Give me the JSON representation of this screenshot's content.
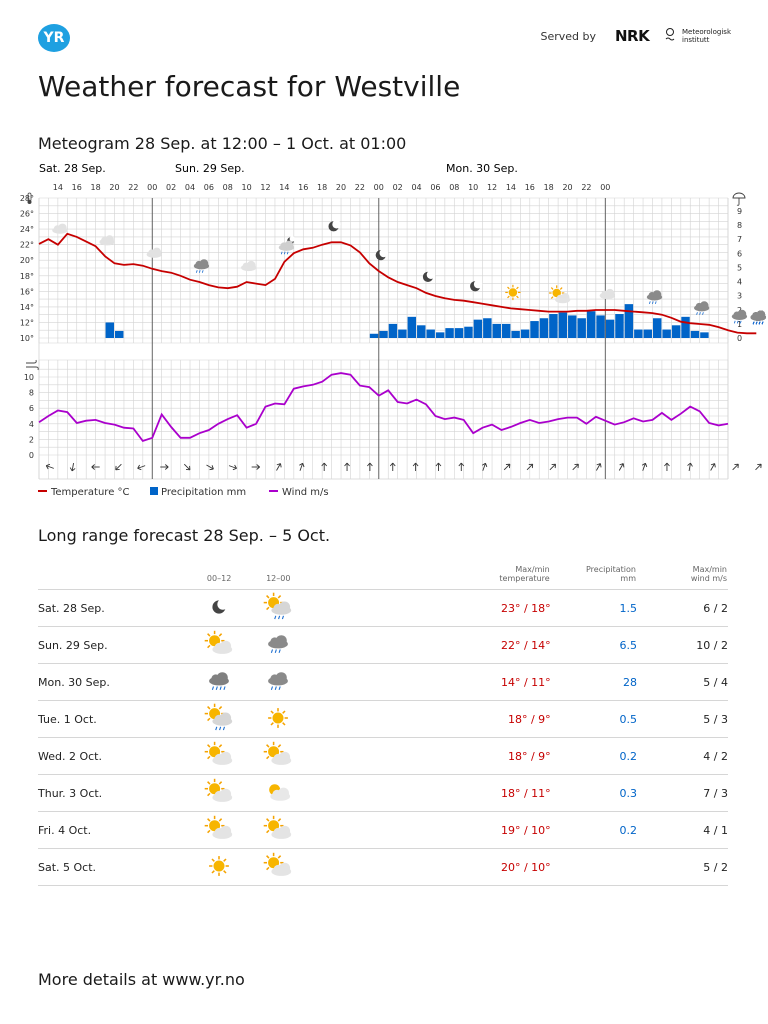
{
  "header": {
    "logo_text": "YR",
    "served_by": "Served by",
    "nrk": "NRK",
    "met_line1": "Meteorologisk",
    "met_line2": "institutt"
  },
  "title": "Weather forecast for Westville",
  "meteogram": {
    "title": "Meteogram 28 Sep. at 12:00 – 1 Oct. at 01:00",
    "days": [
      "Sat. 28 Sep.",
      "Sun. 29 Sep.",
      "Mon. 30 Sep."
    ],
    "hour_labels": [
      "14",
      "16",
      "18",
      "20",
      "22",
      "00",
      "02",
      "04",
      "06",
      "08",
      "10",
      "12",
      "14",
      "16",
      "18",
      "20",
      "22",
      "00",
      "02",
      "04",
      "06",
      "08",
      "10",
      "12",
      "14",
      "16",
      "18",
      "20",
      "22",
      "00"
    ],
    "temp_ticks": [
      "28°",
      "26°",
      "24°",
      "22°",
      "20°",
      "18°",
      "16°",
      "14°",
      "12°",
      "10°"
    ],
    "precip_ticks": [
      "9",
      "8",
      "7",
      "6",
      "5",
      "4",
      "3",
      "2",
      "1",
      "0"
    ],
    "wind_ticks": [
      "10",
      "8",
      "6",
      "4",
      "2",
      "0"
    ],
    "legend": [
      "Temperature °C",
      "Precipitation mm",
      "Wind m/s"
    ],
    "colors": {
      "temperature": "#c60000",
      "precipitation": "#0064c8",
      "wind": "#aa00cc",
      "grid": "#d3d3d3"
    }
  },
  "chart_data": {
    "type": "line",
    "x_start": "28 Sep. 12:00",
    "x_end": "1 Oct. 01:00",
    "x_step_hours": 1,
    "series": [
      {
        "name": "Temperature °C",
        "values": [
          22.1,
          22.7,
          22.0,
          23.4,
          23.0,
          22.4,
          21.8,
          20.5,
          19.6,
          19.4,
          19.5,
          19.3,
          18.9,
          18.6,
          18.4,
          18.0,
          17.5,
          17.2,
          16.8,
          16.5,
          16.4,
          16.6,
          17.2,
          17.0,
          16.8,
          17.6,
          19.8,
          20.9,
          21.4,
          21.6,
          22.0,
          22.3,
          22.3,
          21.9,
          21.0,
          19.6,
          18.6,
          17.8,
          17.2,
          16.8,
          16.4,
          15.8,
          15.4,
          15.1,
          14.9,
          14.8,
          14.6,
          14.4,
          14.2,
          14.0,
          13.8,
          13.7,
          13.6,
          13.5,
          13.4,
          13.4,
          13.4,
          13.5,
          13.5,
          13.6,
          13.6,
          13.6,
          13.5,
          13.4,
          13.3,
          13.2,
          13.0,
          12.6,
          12.1,
          11.9,
          11.8,
          11.7,
          11.4,
          11.0,
          10.7,
          10.6,
          10.6
        ]
      },
      {
        "name": "Precipitation mm",
        "values": [
          0,
          0,
          0,
          0,
          0,
          0,
          0,
          1.1,
          0.5,
          0,
          0,
          0,
          0,
          0,
          0,
          0,
          0,
          0,
          0,
          0,
          0,
          0,
          0,
          0,
          0,
          0,
          0,
          0,
          0,
          0,
          0,
          0,
          0,
          0,
          0,
          0.3,
          0.5,
          1.0,
          0.6,
          1.5,
          0.9,
          0.6,
          0.4,
          0.7,
          0.7,
          0.8,
          1.3,
          1.4,
          1.0,
          1.0,
          0.5,
          0.6,
          1.2,
          1.4,
          1.7,
          1.8,
          1.6,
          1.4,
          1.9,
          1.6,
          1.3,
          1.7,
          2.4,
          0.6,
          0.6,
          1.4,
          0.6,
          0.9,
          1.5,
          0.5,
          0.4
        ]
      },
      {
        "name": "Wind m/s",
        "values": [
          4.2,
          5.0,
          5.7,
          5.5,
          4.1,
          4.4,
          4.5,
          4.1,
          3.9,
          3.5,
          3.4,
          1.8,
          2.2,
          5.2,
          3.6,
          2.2,
          2.2,
          2.8,
          3.2,
          4.0,
          4.6,
          5.1,
          3.5,
          4.0,
          6.2,
          6.6,
          6.5,
          8.5,
          8.8,
          9.0,
          9.4,
          10.3,
          10.5,
          10.3,
          8.9,
          8.7,
          7.6,
          8.3,
          6.8,
          6.6,
          7.1,
          6.5,
          5.0,
          4.6,
          4.8,
          4.5,
          2.8,
          3.5,
          3.9,
          3.2,
          3.6,
          4.1,
          4.5,
          4.1,
          4.3,
          4.6,
          4.8,
          4.8,
          4.0,
          4.9,
          4.4,
          3.9,
          4.2,
          4.7,
          4.3,
          4.5,
          5.4,
          4.5,
          5.3,
          6.2,
          5.6,
          4.1,
          3.8,
          4.0
        ]
      }
    ],
    "ylim_temperature": [
      10,
      28
    ],
    "ylim_precipitation": [
      0,
      9
    ],
    "ylim_wind": [
      0,
      10
    ],
    "grid": true,
    "legend_position": "bottom-left"
  },
  "long_range": {
    "title": "Long range forecast 28 Sep. – 5 Oct.",
    "col_00_12": "00–12",
    "col_12_00": "12–00",
    "col_temp_l1": "Max/min",
    "col_temp_l2": "temperature",
    "col_prec_l1": "Precipitation",
    "col_prec_l2": "mm",
    "col_wind_l1": "Max/min",
    "col_wind_l2": "wind m/s",
    "rows": [
      {
        "day": "Sat. 28 Sep.",
        "icon1": "moon-icon",
        "icon2": "sun-cloud-rain-icon",
        "temp": "23° / 18°",
        "prec": "1.5",
        "wind": "6 / 2"
      },
      {
        "day": "Sun. 29 Sep.",
        "icon1": "sun-cloud-icon",
        "icon2": "cloud-rain-icon",
        "temp": "22° / 14°",
        "prec": "6.5",
        "wind": "10 / 2"
      },
      {
        "day": "Mon. 30 Sep.",
        "icon1": "cloud-heavy-rain-icon",
        "icon2": "cloud-rain-icon",
        "temp": "14° / 11°",
        "prec": "28",
        "wind": "5 / 4"
      },
      {
        "day": "Tue. 1 Oct.",
        "icon1": "sun-cloud-rain-icon",
        "icon2": "sun-icon",
        "temp": "18° / 9°",
        "prec": "0.5",
        "wind": "5 / 3"
      },
      {
        "day": "Wed. 2 Oct.",
        "icon1": "sun-cloud-icon",
        "icon2": "sun-cloud-icon",
        "temp": "18° / 9°",
        "prec": "0.2",
        "wind": "4 / 2"
      },
      {
        "day": "Thur. 3 Oct.",
        "icon1": "sun-cloud-icon",
        "icon2": "cloud-sun-behind-icon",
        "temp": "18° / 11°",
        "prec": "0.3",
        "wind": "7 / 3"
      },
      {
        "day": "Fri. 4 Oct.",
        "icon1": "sun-cloud-icon",
        "icon2": "sun-cloud-icon",
        "temp": "19° / 10°",
        "prec": "0.2",
        "wind": "4 / 1"
      },
      {
        "day": "Sat. 5 Oct.",
        "icon1": "sun-icon",
        "icon2": "sun-cloud-icon",
        "temp": "20° / 10°",
        "prec": "",
        "wind": "5 / 2"
      }
    ]
  },
  "footer": {
    "more": "More details at www.yr.no"
  }
}
